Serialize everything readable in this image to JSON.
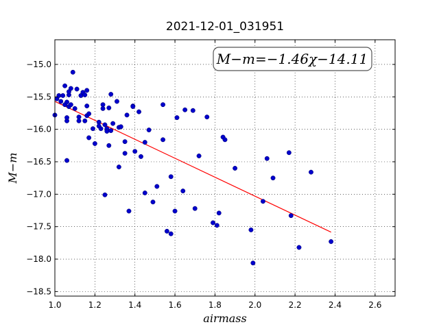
{
  "chart_data": {
    "type": "scatter",
    "title": "2021-12-01_031951",
    "xlabel": "airmass",
    "ylabel": "M−m",
    "xlim": [
      1.0,
      2.7
    ],
    "ylim": [
      -18.57,
      -14.62
    ],
    "x_ticks": [
      "1.0",
      "1.2",
      "1.4",
      "1.6",
      "1.8",
      "2.0",
      "2.2",
      "2.4",
      "2.6"
    ],
    "x_tick_values": [
      1.0,
      1.2,
      1.4,
      1.6,
      1.8,
      2.0,
      2.2,
      2.4,
      2.6
    ],
    "y_ticks": [
      "−15.0",
      "−15.5",
      "−16.0",
      "−16.5",
      "−17.0",
      "−17.5",
      "−18.0",
      "−18.5"
    ],
    "y_tick_values": [
      -15.0,
      -15.5,
      -16.0,
      -16.5,
      -17.0,
      -17.5,
      -18.0,
      -18.5
    ],
    "grid": true,
    "annotation": "M−m=−1.46χ−14.11",
    "fit": {
      "slope": -1.46,
      "intercept": -14.11,
      "x_range": [
        1.0,
        2.38
      ],
      "color": "#ff0000"
    },
    "point_color": "#0000cc",
    "points": [
      [
        1.0,
        -15.78
      ],
      [
        1.01,
        -15.53
      ],
      [
        1.02,
        -15.48
      ],
      [
        1.03,
        -15.57
      ],
      [
        1.04,
        -15.48
      ],
      [
        1.05,
        -15.33
      ],
      [
        1.05,
        -15.62
      ],
      [
        1.06,
        -15.58
      ],
      [
        1.06,
        -15.87
      ],
      [
        1.06,
        -15.82
      ],
      [
        1.06,
        -16.48
      ],
      [
        1.07,
        -15.65
      ],
      [
        1.07,
        -15.47
      ],
      [
        1.07,
        -15.42
      ],
      [
        1.08,
        -15.37
      ],
      [
        1.08,
        -15.62
      ],
      [
        1.09,
        -15.12
      ],
      [
        1.1,
        -15.68
      ],
      [
        1.11,
        -15.38
      ],
      [
        1.12,
        -15.81
      ],
      [
        1.12,
        -15.87
      ],
      [
        1.13,
        -15.48
      ],
      [
        1.14,
        -15.43
      ],
      [
        1.15,
        -15.47
      ],
      [
        1.15,
        -15.87
      ],
      [
        1.16,
        -15.79
      ],
      [
        1.16,
        -15.4
      ],
      [
        1.16,
        -15.64
      ],
      [
        1.17,
        -15.76
      ],
      [
        1.17,
        -16.13
      ],
      [
        1.19,
        -15.99
      ],
      [
        1.2,
        -16.22
      ],
      [
        1.22,
        -15.89
      ],
      [
        1.22,
        -15.95
      ],
      [
        1.23,
        -15.99
      ],
      [
        1.24,
        -15.62
      ],
      [
        1.24,
        -15.68
      ],
      [
        1.25,
        -17.01
      ],
      [
        1.25,
        -15.93
      ],
      [
        1.26,
        -16.01
      ],
      [
        1.26,
        -15.99
      ],
      [
        1.26,
        -16.03
      ],
      [
        1.27,
        -16.25
      ],
      [
        1.27,
        -15.67
      ],
      [
        1.28,
        -15.46
      ],
      [
        1.28,
        -16.02
      ],
      [
        1.29,
        -15.91
      ],
      [
        1.31,
        -15.57
      ],
      [
        1.32,
        -15.97
      ],
      [
        1.32,
        -16.58
      ],
      [
        1.33,
        -15.96
      ],
      [
        1.35,
        -16.19
      ],
      [
        1.35,
        -16.37
      ],
      [
        1.36,
        -15.78
      ],
      [
        1.37,
        -17.26
      ],
      [
        1.39,
        -15.64
      ],
      [
        1.39,
        -15.65
      ],
      [
        1.4,
        -16.34
      ],
      [
        1.42,
        -15.73
      ],
      [
        1.43,
        -16.42
      ],
      [
        1.45,
        -16.98
      ],
      [
        1.45,
        -16.2
      ],
      [
        1.47,
        -16.01
      ],
      [
        1.49,
        -17.12
      ],
      [
        1.51,
        -16.88
      ],
      [
        1.54,
        -16.16
      ],
      [
        1.54,
        -15.62
      ],
      [
        1.56,
        -17.57
      ],
      [
        1.58,
        -16.73
      ],
      [
        1.58,
        -17.61
      ],
      [
        1.6,
        -17.26
      ],
      [
        1.61,
        -15.82
      ],
      [
        1.64,
        -16.95
      ],
      [
        1.65,
        -15.7
      ],
      [
        1.69,
        -15.71
      ],
      [
        1.7,
        -17.22
      ],
      [
        1.72,
        -16.41
      ],
      [
        1.76,
        -15.81
      ],
      [
        1.79,
        -17.44
      ],
      [
        1.81,
        -17.48
      ],
      [
        1.82,
        -17.29
      ],
      [
        1.84,
        -16.12
      ],
      [
        1.85,
        -16.16
      ],
      [
        1.9,
        -16.6
      ],
      [
        1.98,
        -17.55
      ],
      [
        1.99,
        -18.06
      ],
      [
        2.04,
        -17.11
      ],
      [
        2.06,
        -16.45
      ],
      [
        2.09,
        -16.75
      ],
      [
        2.17,
        -16.36
      ],
      [
        2.18,
        -17.33
      ],
      [
        2.22,
        -17.82
      ],
      [
        2.28,
        -16.66
      ],
      [
        2.38,
        -17.73
      ]
    ]
  }
}
